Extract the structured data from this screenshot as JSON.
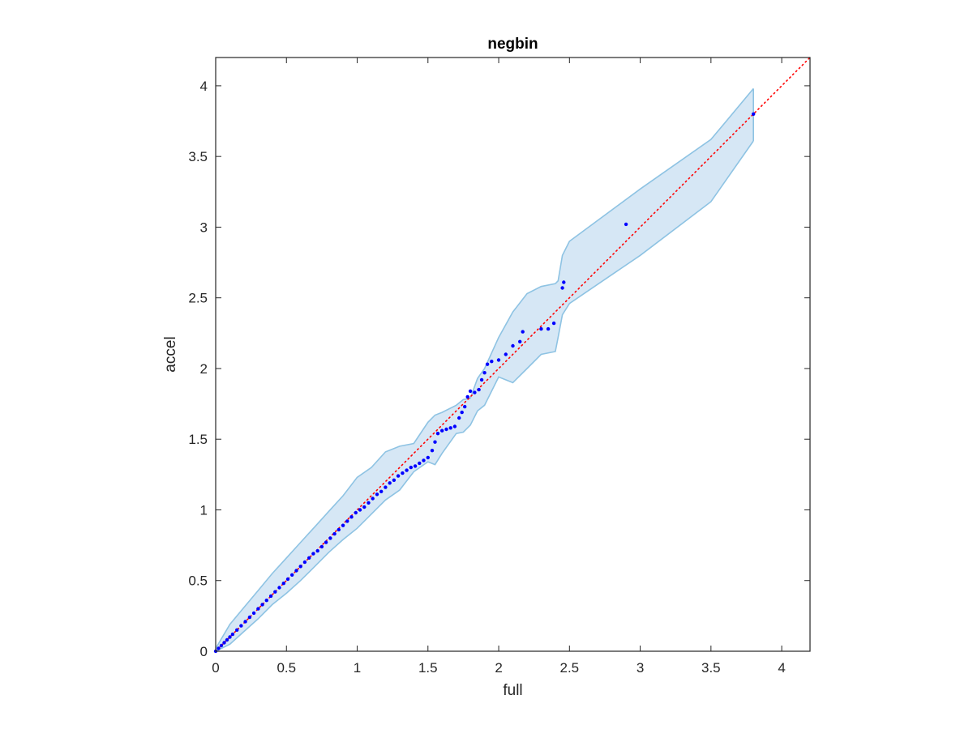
{
  "chart_data": {
    "type": "scatter",
    "title": "negbin",
    "xlabel": "full",
    "ylabel": "accel",
    "xlim": [
      0,
      4.2
    ],
    "ylim": [
      0,
      4.2
    ],
    "xticks": [
      0,
      0.5,
      1,
      1.5,
      2,
      2.5,
      3,
      3.5,
      4
    ],
    "yticks": [
      0,
      0.5,
      1,
      1.5,
      2,
      2.5,
      3,
      3.5,
      4
    ],
    "xtick_labels": [
      "0",
      "0.5",
      "1",
      "1.5",
      "2",
      "2.5",
      "3",
      "3.5",
      "4"
    ],
    "ytick_labels": [
      "0",
      "0.5",
      "1",
      "1.5",
      "2",
      "2.5",
      "3",
      "3.5",
      "4"
    ],
    "grid": false,
    "legend": "none",
    "colors": {
      "points": "#0000ff",
      "reference_line": "#ff0000",
      "band_fill": "#d6e7f5",
      "band_edge": "#8ec3e3",
      "axes": "#262626"
    },
    "reference_line": {
      "x": [
        0,
        4.2
      ],
      "y": [
        0,
        4.2
      ],
      "style": "dotted"
    },
    "band": {
      "x": [
        0,
        0.1,
        0.2,
        0.3,
        0.4,
        0.5,
        0.6,
        0.7,
        0.8,
        0.9,
        1.0,
        1.1,
        1.2,
        1.3,
        1.4,
        1.5,
        1.55,
        1.6,
        1.7,
        1.75,
        1.8,
        1.85,
        1.9,
        2.0,
        2.1,
        2.2,
        2.3,
        2.4,
        2.42,
        2.45,
        2.5,
        3.0,
        3.5,
        3.8
      ],
      "upper": [
        0.02,
        0.19,
        0.31,
        0.43,
        0.55,
        0.66,
        0.77,
        0.88,
        0.99,
        1.1,
        1.23,
        1.3,
        1.41,
        1.45,
        1.47,
        1.62,
        1.67,
        1.69,
        1.74,
        1.78,
        1.79,
        1.93,
        2.0,
        2.22,
        2.4,
        2.53,
        2.58,
        2.6,
        2.62,
        2.8,
        2.9,
        3.27,
        3.62,
        3.98
      ],
      "lower": [
        0.0,
        0.05,
        0.14,
        0.23,
        0.33,
        0.41,
        0.5,
        0.6,
        0.7,
        0.79,
        0.87,
        0.97,
        1.07,
        1.14,
        1.27,
        1.34,
        1.32,
        1.4,
        1.54,
        1.55,
        1.6,
        1.7,
        1.74,
        1.94,
        1.9,
        2.0,
        2.1,
        2.12,
        2.22,
        2.38,
        2.46,
        2.8,
        3.18,
        3.61
      ]
    },
    "series": [
      {
        "x": [
          0.0,
          0.02,
          0.04,
          0.06,
          0.08,
          0.1,
          0.12,
          0.15,
          0.18,
          0.21,
          0.24,
          0.27,
          0.3,
          0.33,
          0.36,
          0.39,
          0.42,
          0.45,
          0.48,
          0.51,
          0.54,
          0.57,
          0.6,
          0.63,
          0.66,
          0.69,
          0.72,
          0.75,
          0.78,
          0.81,
          0.84,
          0.87,
          0.9,
          0.93,
          0.96,
          0.99,
          1.02,
          1.05,
          1.08,
          1.11,
          1.14,
          1.17,
          1.2,
          1.23,
          1.26,
          1.29,
          1.32,
          1.35,
          1.38,
          1.41,
          1.44,
          1.47,
          1.5,
          1.53,
          1.55,
          1.57,
          1.6,
          1.63,
          1.66,
          1.69,
          1.72,
          1.74,
          1.76,
          1.78,
          1.8,
          1.83,
          1.86,
          1.88,
          1.9,
          1.92,
          1.95,
          2.0,
          2.05,
          2.1,
          2.15,
          2.17,
          2.3,
          2.35,
          2.39,
          2.45,
          2.46,
          2.9,
          3.8
        ],
        "y": [
          0.0,
          0.02,
          0.04,
          0.06,
          0.08,
          0.1,
          0.12,
          0.15,
          0.18,
          0.21,
          0.24,
          0.27,
          0.3,
          0.33,
          0.36,
          0.39,
          0.42,
          0.45,
          0.48,
          0.51,
          0.54,
          0.57,
          0.6,
          0.63,
          0.66,
          0.69,
          0.71,
          0.74,
          0.77,
          0.8,
          0.83,
          0.86,
          0.89,
          0.92,
          0.95,
          0.98,
          1.0,
          1.02,
          1.05,
          1.08,
          1.11,
          1.13,
          1.16,
          1.19,
          1.21,
          1.24,
          1.26,
          1.28,
          1.3,
          1.31,
          1.33,
          1.35,
          1.37,
          1.42,
          1.48,
          1.54,
          1.56,
          1.57,
          1.58,
          1.59,
          1.65,
          1.69,
          1.73,
          1.8,
          1.84,
          1.83,
          1.85,
          1.92,
          1.97,
          2.03,
          2.05,
          2.06,
          2.1,
          2.16,
          2.19,
          2.26,
          2.28,
          2.28,
          2.32,
          2.57,
          2.61,
          3.02,
          3.8
        ]
      }
    ]
  }
}
